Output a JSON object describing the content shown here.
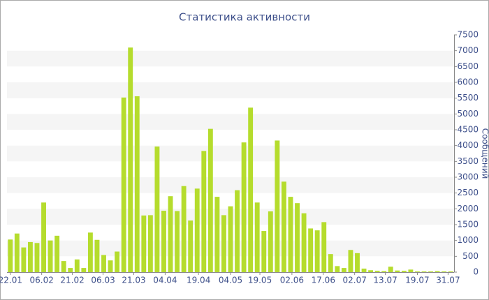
{
  "chart_data": {
    "type": "bar",
    "title": "Статистика активности",
    "y_label": "Сообщений",
    "values": [
      1030,
      1220,
      780,
      950,
      920,
      2200,
      1000,
      1150,
      350,
      130,
      400,
      130,
      1250,
      1020,
      540,
      370,
      650,
      5520,
      7100,
      5560,
      1790,
      1800,
      3970,
      1940,
      2400,
      1930,
      2720,
      1630,
      2640,
      3830,
      4530,
      2380,
      1800,
      2080,
      2590,
      4100,
      5200,
      2200,
      1300,
      1920,
      4160,
      2860,
      2380,
      2180,
      1860,
      1380,
      1320,
      1580,
      570,
      190,
      130,
      700,
      600,
      110,
      60,
      40,
      30,
      170,
      50,
      40,
      80,
      20,
      20,
      20,
      30,
      20,
      20
    ],
    "color": "#b5dc2d",
    "xlim": [
      -0.5,
      66.5
    ],
    "xticks": [
      {
        "value": 0,
        "label": "22.01"
      },
      {
        "value": 4.7,
        "label": "06.02"
      },
      {
        "value": 9.3,
        "label": "21.02"
      },
      {
        "value": 13.9,
        "label": "06.03"
      },
      {
        "value": 18.5,
        "label": "21.03"
      },
      {
        "value": 23.2,
        "label": "04.04"
      },
      {
        "value": 28.2,
        "label": "19.04"
      },
      {
        "value": 33.0,
        "label": "04.05"
      },
      {
        "value": 37.4,
        "label": "19.05"
      },
      {
        "value": 42.2,
        "label": "02.06"
      },
      {
        "value": 46.9,
        "label": "17.06"
      },
      {
        "value": 51.6,
        "label": "02.07"
      },
      {
        "value": 56.2,
        "label": "13.07"
      },
      {
        "value": 61.0,
        "label": "19.07"
      },
      {
        "value": 65.6,
        "label": "31.07"
      }
    ],
    "ylim": [
      0,
      7500
    ],
    "yticks": [
      0,
      500,
      1000,
      1500,
      2000,
      2500,
      3000,
      3500,
      4000,
      4500,
      5000,
      5500,
      6000,
      6500,
      7000,
      7500
    ],
    "grid": true
  }
}
